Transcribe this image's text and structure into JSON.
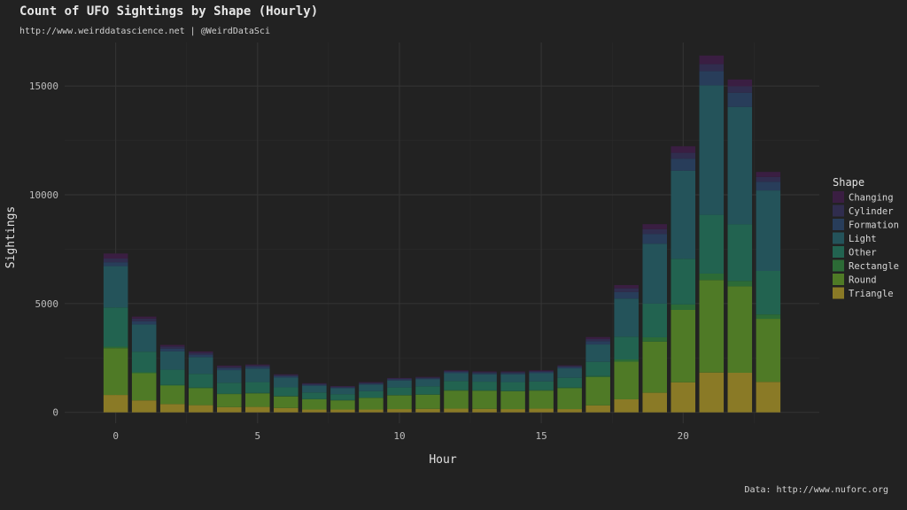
{
  "chart_data": {
    "type": "bar",
    "stacked": true,
    "title": "Count of UFO Sightings by Shape (Hourly)",
    "subtitle": "http://www.weirddatascience.net | @WeirdDataSci",
    "caption": "Data: http://www.nuforc.org",
    "xlabel": "Hour",
    "ylabel": "Sightings",
    "xlim": [
      -1.8,
      24.8
    ],
    "ylim": [
      -500,
      17000
    ],
    "x_ticks": [
      0,
      5,
      10,
      15,
      20
    ],
    "y_ticks": [
      0,
      5000,
      10000,
      15000
    ],
    "grid": true,
    "legend_title": "Shape",
    "legend_position": "right",
    "x": [
      0,
      1,
      2,
      3,
      4,
      5,
      6,
      7,
      8,
      9,
      10,
      11,
      12,
      13,
      14,
      15,
      16,
      17,
      18,
      19,
      20,
      21,
      22,
      23
    ],
    "series": [
      {
        "name": "Triangle",
        "color": "#8a7a26",
        "values": [
          800,
          550,
          380,
          330,
          240,
          250,
          200,
          130,
          130,
          130,
          150,
          160,
          170,
          160,
          150,
          170,
          150,
          320,
          600,
          900,
          1380,
          1830,
          1820,
          1400
        ]
      },
      {
        "name": "Round",
        "color": "#4f7a26",
        "values": [
          2150,
          1250,
          850,
          780,
          600,
          620,
          530,
          470,
          420,
          530,
          630,
          650,
          830,
          830,
          820,
          830,
          960,
          1300,
          1730,
          2350,
          3330,
          4250,
          3970,
          2900
        ]
      },
      {
        "name": "Rectangle",
        "color": "#2c6b36",
        "values": [
          70,
          40,
          30,
          30,
          20,
          20,
          20,
          15,
          15,
          15,
          15,
          15,
          20,
          20,
          20,
          20,
          30,
          50,
          100,
          200,
          250,
          300,
          250,
          200
        ]
      },
      {
        "name": "Other",
        "color": "#226350",
        "values": [
          1800,
          950,
          700,
          630,
          500,
          500,
          400,
          300,
          270,
          300,
          350,
          370,
          420,
          400,
          400,
          400,
          450,
          650,
          1050,
          1550,
          2100,
          2700,
          2600,
          2000
        ]
      },
      {
        "name": "Light",
        "color": "#24535a",
        "values": [
          1900,
          1250,
          850,
          770,
          580,
          620,
          450,
          310,
          270,
          300,
          320,
          320,
          360,
          340,
          360,
          380,
          430,
          800,
          1750,
          2750,
          4050,
          5950,
          5400,
          3700
        ]
      },
      {
        "name": "Formation",
        "color": "#283d5a",
        "values": [
          180,
          150,
          120,
          110,
          90,
          90,
          70,
          50,
          40,
          50,
          50,
          50,
          60,
          60,
          60,
          60,
          70,
          150,
          300,
          450,
          550,
          650,
          650,
          400
        ]
      },
      {
        "name": "Cylinder",
        "color": "#302d4e",
        "values": [
          170,
          120,
          100,
          90,
          70,
          60,
          50,
          40,
          40,
          40,
          40,
          40,
          40,
          40,
          40,
          40,
          40,
          100,
          170,
          220,
          270,
          330,
          300,
          220
        ]
      },
      {
        "name": "Changing",
        "color": "#3a1e42",
        "values": [
          230,
          90,
          70,
          60,
          50,
          40,
          30,
          25,
          25,
          25,
          25,
          25,
          30,
          30,
          30,
          30,
          30,
          90,
          150,
          230,
          300,
          390,
          310,
          230
        ]
      }
    ]
  }
}
